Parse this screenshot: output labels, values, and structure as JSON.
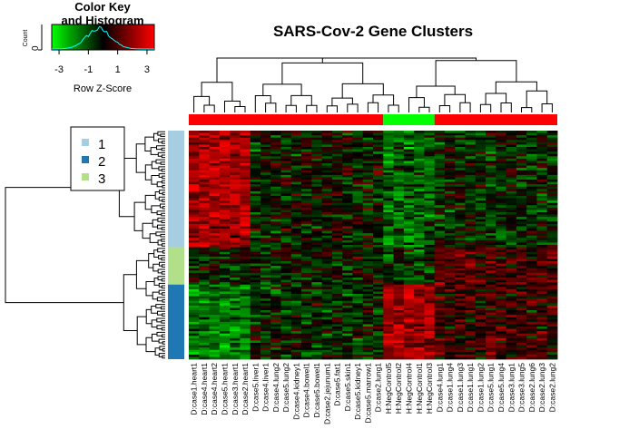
{
  "chart_data": {
    "type": "heatmap",
    "title": "SARS-Cov-2 Gene Clusters",
    "color_key": {
      "title_line1": "Color Key",
      "title_line2": "and Histogram",
      "xlabel": "Row Z-Score",
      "ylabel": "Count",
      "y_tick": "0",
      "ticks": [
        "-3",
        "-1",
        "1",
        "3"
      ],
      "tick_values": [
        -3,
        -1,
        1,
        3
      ],
      "range": [
        -3.5,
        3.5
      ],
      "colors": {
        "low": "#00ff00",
        "mid": "#000000",
        "high": "#ff0000"
      },
      "histogram_color": "#00ffff"
    },
    "legend": {
      "entries": [
        {
          "label": "1",
          "color": "#a6cee3"
        },
        {
          "label": "2",
          "color": "#1f78b4"
        },
        {
          "label": "3",
          "color": "#b2df8a"
        }
      ]
    },
    "columns": [
      "D:case1.heart1",
      "D:case4.heart1",
      "D:case4.heart2",
      "D:case5.heart1",
      "D:case3.heart1",
      "D:case2.heart1",
      "D:case5.liver1",
      "D:case4.liver1",
      "D:case4.lung2",
      "D:case5.lung2",
      "D:case4.kidney1",
      "D:case4.bowel1",
      "D:case5.bowel1",
      "D:case2.jejunum1",
      "D:case5.fat1",
      "D:case5.skin1",
      "D:case5.kidney1",
      "D:case5.marrow1",
      "D:case2.lung1",
      "H:NegControl5",
      "H:NegControl2",
      "H:NegControl4",
      "H:NegControl1",
      "H:NegControl3",
      "D:case4.lung1",
      "D:case1.lung4",
      "D:case1.lung3",
      "D:case1.lung1",
      "D:case1.lung2",
      "D:case5.lung1",
      "D:case5.lung4",
      "D:case3.lung1",
      "D:case3.lung5",
      "D:case2.lung6",
      "D:case2.lung3",
      "D:case2.lung2"
    ],
    "column_groups": [
      {
        "color": "#ff0000",
        "count": 19
      },
      {
        "color": "#00ff00",
        "count": 5
      },
      {
        "color": "#ff0000",
        "count": 12
      }
    ],
    "row_groups": [
      {
        "cluster": "1",
        "color": "#a6cee3",
        "count": 50
      },
      {
        "cluster": "3",
        "color": "#b2df8a",
        "count": 16
      },
      {
        "cluster": "2",
        "color": "#1f78b4",
        "count": 32
      }
    ]
  }
}
